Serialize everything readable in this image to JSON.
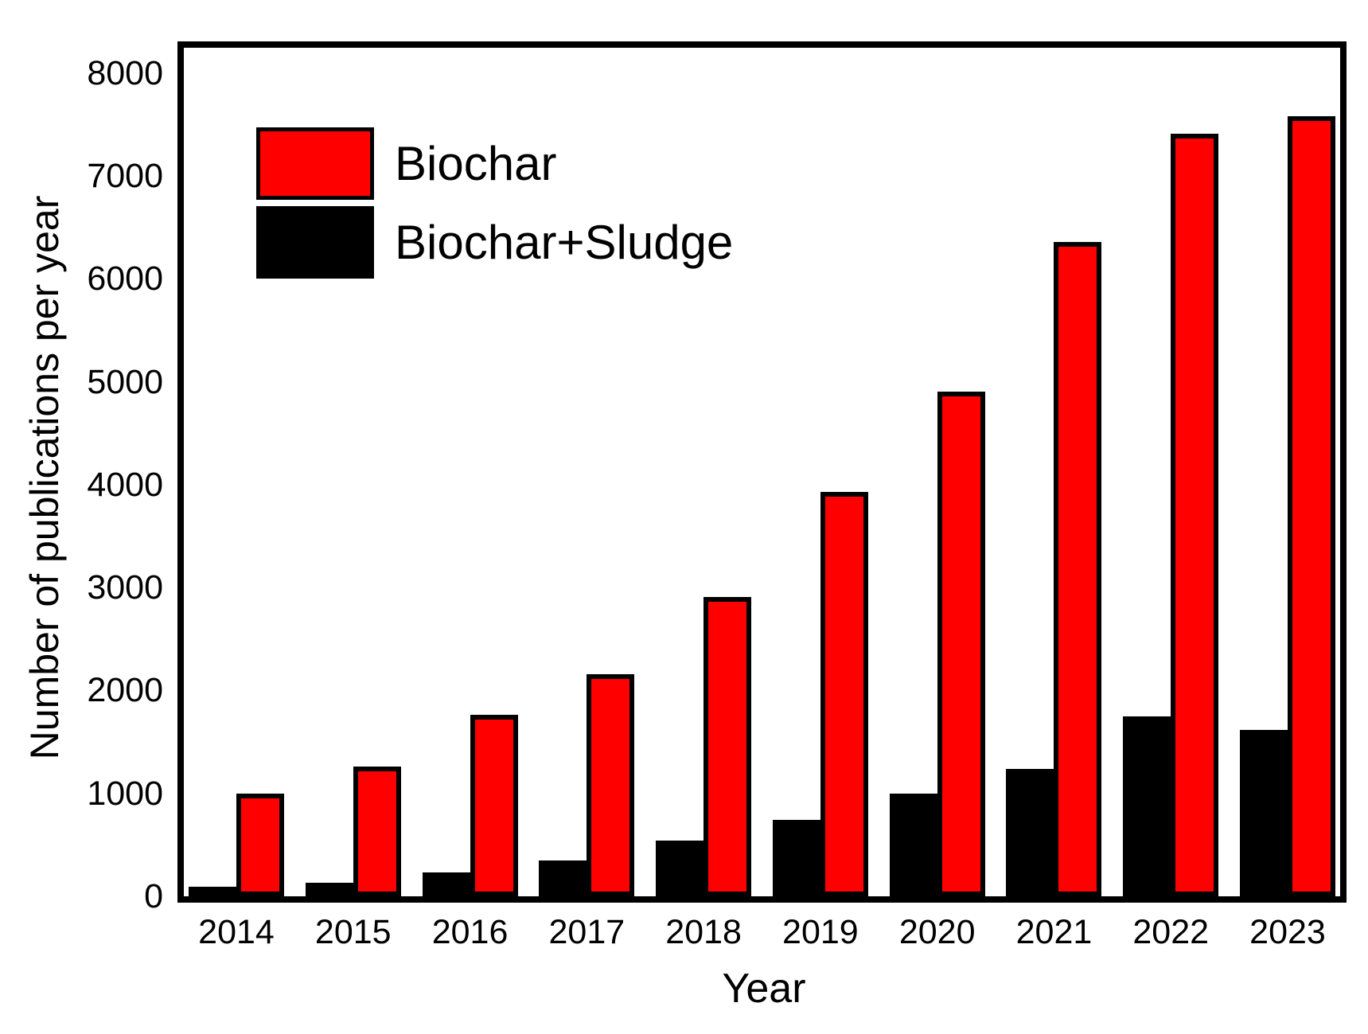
{
  "chart_data": {
    "type": "bar",
    "title": "",
    "xlabel": "Year",
    "ylabel": "Number of publications per year",
    "categories": [
      "2014",
      "2015",
      "2016",
      "2017",
      "2018",
      "2019",
      "2020",
      "2021",
      "2022",
      "2023"
    ],
    "series": [
      {
        "name": "Biochar",
        "color": "#FF0000",
        "values": [
          1000,
          1260,
          1760,
          2160,
          2910,
          3930,
          4900,
          6360,
          7410,
          7580
        ]
      },
      {
        "name": "Biochar+Sludge",
        "color": "#000000",
        "values": [
          90,
          130,
          230,
          350,
          540,
          740,
          1000,
          1240,
          1750,
          1620
        ]
      }
    ],
    "group_order": [
      "Biochar+Sludge",
      "Biochar"
    ],
    "ylim": [
      0,
      8300
    ],
    "yticks": [
      0,
      1000,
      2000,
      3000,
      4000,
      5000,
      6000,
      7000,
      8000
    ],
    "grid": false,
    "legend_position": "top-left-inside",
    "frame_color": "#000000",
    "background_color": "#FFFFFF"
  }
}
